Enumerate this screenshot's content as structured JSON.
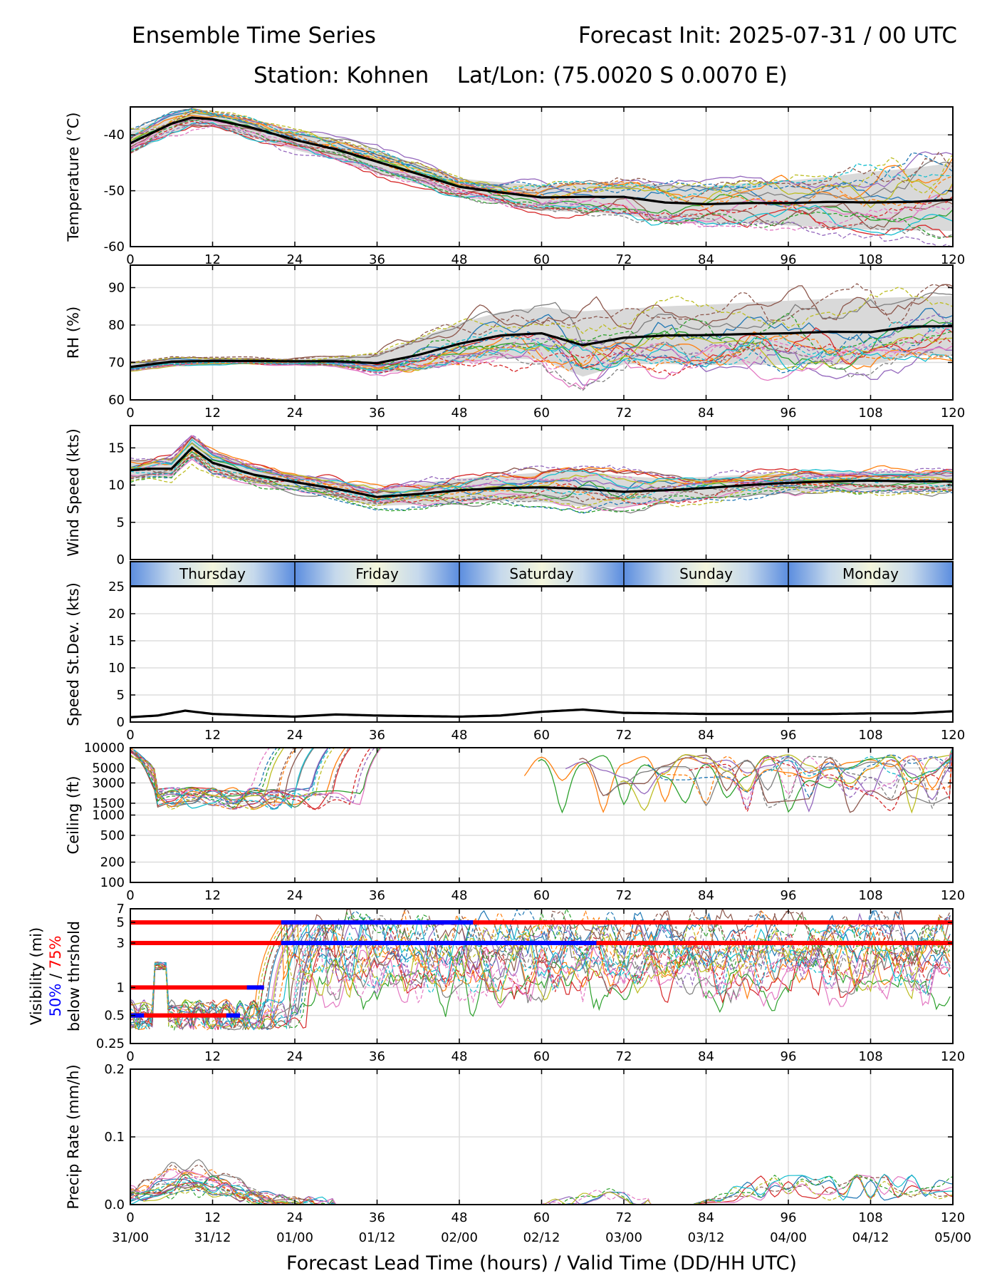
{
  "header": {
    "title_left": "Ensemble Time Series",
    "title_right": "Forecast Init: 2025-07-31 / 00 UTC",
    "station_line": "Station: Kohnen    Lat/Lon: (75.0020 S 0.0070 E)"
  },
  "x_axis": {
    "label": "Forecast Lead Time (hours) / Valid Time (DD/HH UTC)",
    "lead_ticks": [
      "0",
      "12",
      "24",
      "36",
      "48",
      "60",
      "72",
      "84",
      "96",
      "108",
      "120"
    ],
    "valid_ticks": [
      "31/00",
      "31/12",
      "01/00",
      "01/12",
      "02/00",
      "02/12",
      "03/00",
      "03/12",
      "04/00",
      "04/12",
      "05/00"
    ],
    "range": [
      0,
      120
    ]
  },
  "day_bar": {
    "days": [
      "Thursday",
      "Friday",
      "Saturday",
      "Sunday",
      "Monday"
    ]
  },
  "colors": {
    "members": [
      "#1f77b4",
      "#ff7f0e",
      "#2ca02c",
      "#d62728",
      "#9467bd",
      "#8c564b",
      "#e377c2",
      "#7f7f7f",
      "#bcbd22",
      "#17becf"
    ],
    "mean": "#000000",
    "spread": "#d9d9d9",
    "vis_50": "#0000ff",
    "vis_75": "#ff0000"
  },
  "chart_data": [
    {
      "type": "line",
      "name": "temperature",
      "ylabel": "Temperature (°C)",
      "ylim": [
        -60,
        -35
      ],
      "yticks": [
        "-40",
        "-50",
        "-60"
      ],
      "ytick_values": [
        -40,
        -50,
        -60
      ],
      "grid": true,
      "x": [
        0,
        6,
        9,
        12,
        18,
        24,
        30,
        36,
        42,
        48,
        54,
        60,
        66,
        72,
        78,
        84,
        90,
        96,
        102,
        108,
        114,
        120
      ],
      "mean": [
        -41.5,
        -38,
        -36.9,
        -37.2,
        -38.8,
        -40.9,
        -42.6,
        -44.8,
        -47,
        -49.3,
        -50.3,
        -51.2,
        -51.1,
        -51.1,
        -52.1,
        -52.4,
        -52.2,
        -52.2,
        -52,
        -52.1,
        -52,
        -51.6
      ],
      "spread_upper": [
        -39.5,
        -36.3,
        -35.4,
        -36,
        -37.2,
        -39.2,
        -40.9,
        -42.8,
        -45.3,
        -47.8,
        -48.5,
        -49,
        -48.8,
        -48.3,
        -49,
        -49.2,
        -48.6,
        -48.2,
        -47.5,
        -46.6,
        -46,
        -45
      ],
      "spread_lower": [
        -43.4,
        -39.8,
        -38.6,
        -38.6,
        -40.6,
        -42.7,
        -44.5,
        -46.8,
        -48.8,
        -51,
        -52.3,
        -53.6,
        -53.8,
        -54.3,
        -55.5,
        -56,
        -55.7,
        -56.2,
        -56.6,
        -57,
        -57.1,
        -57.2
      ]
    },
    {
      "type": "line",
      "name": "relative-humidity",
      "ylabel": "RH (%)",
      "ylim": [
        60,
        96
      ],
      "yticks": [
        "90",
        "80",
        "70",
        "60"
      ],
      "ytick_values": [
        90,
        80,
        70,
        60
      ],
      "grid": true,
      "x": [
        0,
        6,
        12,
        18,
        24,
        30,
        36,
        42,
        48,
        54,
        60,
        66,
        72,
        78,
        84,
        90,
        96,
        102,
        108,
        114,
        120
      ],
      "mean": [
        68.8,
        70.2,
        70.4,
        70.4,
        70.3,
        70.3,
        69.8,
        72,
        75,
        77.2,
        77.8,
        74.6,
        76.6,
        77.2,
        77.3,
        77.6,
        77.8,
        78.2,
        78.1,
        79.6,
        79.7
      ],
      "spread_upper": [
        70,
        71.3,
        71.2,
        71.1,
        71,
        71.4,
        72.4,
        76.5,
        80.5,
        83.5,
        84.8,
        83.7,
        84.3,
        85,
        85.4,
        86,
        86.5,
        87,
        87.2,
        87.5,
        87.8
      ],
      "spread_lower": [
        67.7,
        69.1,
        69.6,
        69.6,
        69.6,
        69.2,
        67.3,
        67.8,
        69.6,
        71.1,
        70.8,
        66.2,
        69.5,
        69.6,
        69.3,
        69.4,
        69.3,
        69.6,
        69.2,
        71.9,
        71.8
      ]
    },
    {
      "type": "line",
      "name": "wind-speed",
      "ylabel": "Wind Speed (kts)",
      "ylim": [
        0,
        18
      ],
      "yticks": [
        "15",
        "10",
        "5",
        "0"
      ],
      "ytick_values": [
        15,
        10,
        5,
        0
      ],
      "grid": true,
      "x": [
        0,
        3,
        6,
        9,
        12,
        18,
        24,
        30,
        36,
        42,
        48,
        54,
        60,
        66,
        72,
        78,
        84,
        90,
        96,
        102,
        108,
        114,
        120
      ],
      "mean": [
        12,
        12.2,
        12.2,
        15,
        13,
        11.4,
        10.4,
        9.5,
        8.4,
        8.8,
        9.3,
        9.6,
        9.7,
        9.5,
        9.1,
        9.3,
        9.6,
        10,
        10.3,
        10.5,
        10.6,
        10.5,
        10.5
      ],
      "spread_upper": [
        13.2,
        13.3,
        13.5,
        16.4,
        14.3,
        12.6,
        11.5,
        10.7,
        9.6,
        10.2,
        10.9,
        11.3,
        11.7,
        11.9,
        11.2,
        10.9,
        11.1,
        11.4,
        11.6,
        11.8,
        11.9,
        11.8,
        11.8
      ],
      "spread_lower": [
        10.8,
        11.1,
        10.9,
        13.6,
        11.7,
        10.2,
        9.3,
        8.3,
        7.2,
        7.4,
        7.7,
        7.9,
        7.7,
        7.1,
        7,
        7.7,
        8.1,
        8.6,
        9,
        9.2,
        9.3,
        9.2,
        9.2
      ]
    },
    {
      "type": "line",
      "name": "speed-stdev",
      "ylabel": "Speed St.Dev. (kts)",
      "ylim": [
        0,
        25
      ],
      "yticks": [
        "25",
        "20",
        "15",
        "10",
        "5",
        "0"
      ],
      "ytick_values": [
        25,
        20,
        15,
        10,
        5,
        0
      ],
      "grid": true,
      "x": [
        0,
        4,
        8,
        12,
        18,
        24,
        30,
        36,
        42,
        48,
        54,
        60,
        66,
        72,
        78,
        84,
        90,
        96,
        102,
        108,
        114,
        120
      ],
      "mean": [
        0.9,
        1.2,
        2.1,
        1.5,
        1.2,
        1,
        1.4,
        1.2,
        1.1,
        1,
        1.2,
        1.9,
        2.3,
        1.7,
        1.6,
        1.5,
        1.5,
        1.5,
        1.5,
        1.6,
        1.6,
        2
      ]
    },
    {
      "type": "line",
      "name": "ceiling",
      "ylabel": "Ceiling (ft)",
      "scale": "log",
      "ylim": [
        100,
        10000
      ],
      "yticks": [
        "10000",
        "5000",
        "3000",
        "1500",
        "1000",
        "500",
        "200",
        "100"
      ],
      "ytick_values": [
        10000,
        5000,
        3000,
        1500,
        1000,
        500,
        200,
        100
      ],
      "grid": true
    },
    {
      "type": "line",
      "name": "visibility",
      "ylabel": "Visibility (mi)",
      "ylabel_line2_a": "50%",
      "ylabel_line2_sep": " / ",
      "ylabel_line2_b": "75%",
      "ylabel_line3": "below thrshold",
      "scale": "log",
      "ylim": [
        0.25,
        7
      ],
      "yticks": [
        "7",
        "5",
        "3",
        "1",
        "0.5",
        "0.25"
      ],
      "ytick_values": [
        7,
        5,
        3,
        1,
        0.5,
        0.25
      ],
      "grid": true,
      "threshold_lines": [
        {
          "value": 5,
          "start": 0,
          "end": 120,
          "color": "red"
        },
        {
          "value": 3,
          "start": 0,
          "end": 120,
          "color": "red"
        },
        {
          "value": 1,
          "start": 0,
          "end": 19.5,
          "color": "red"
        },
        {
          "value": 0.5,
          "start": 0,
          "end": 16,
          "color": "red"
        },
        {
          "value": 5,
          "start": 22,
          "end": 50,
          "color": "blue"
        },
        {
          "value": 3,
          "start": 22,
          "end": 68,
          "color": "blue"
        },
        {
          "value": 1,
          "start": 17,
          "end": 19.5,
          "color": "blue"
        },
        {
          "value": 0.5,
          "start": 0,
          "end": 2,
          "color": "blue"
        },
        {
          "value": 0.5,
          "start": 14,
          "end": 16,
          "color": "blue"
        }
      ]
    },
    {
      "type": "line",
      "name": "precip-rate",
      "ylabel": "Precip Rate (mm/h)",
      "ylim": [
        0,
        0.2
      ],
      "yticks": [
        "0.2",
        "0.1",
        "0.0"
      ],
      "ytick_values": [
        0.2,
        0.1,
        0.0
      ],
      "grid": true
    }
  ]
}
